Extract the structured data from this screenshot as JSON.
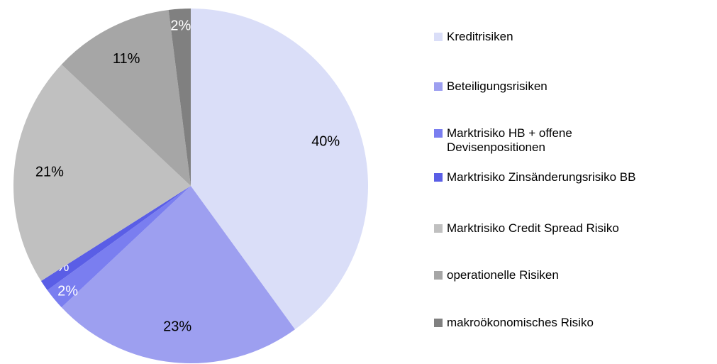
{
  "chart_data": {
    "type": "pie",
    "categories": [
      "Kreditrisiken",
      "Beteiligungsrisiken",
      "Marktrisiko HB + offene Devisenpositionen",
      "Marktrisiko Zinsänderungsrisiko BB",
      "Marktrisiko Credit Spread Risiko",
      "operationelle Risiken",
      "makroökonomisches Risiko"
    ],
    "values": [
      40,
      23,
      2,
      1,
      21,
      11,
      2
    ],
    "value_labels": [
      "40%",
      "23%",
      "2%",
      "1%",
      "21%",
      "11%",
      "2%"
    ],
    "colors": [
      "#dadef8",
      "#9d9ff0",
      "#7a7ef0",
      "#5a5ee6",
      "#c0c0c0",
      "#a6a6a6",
      "#808080"
    ],
    "legend": "right"
  }
}
